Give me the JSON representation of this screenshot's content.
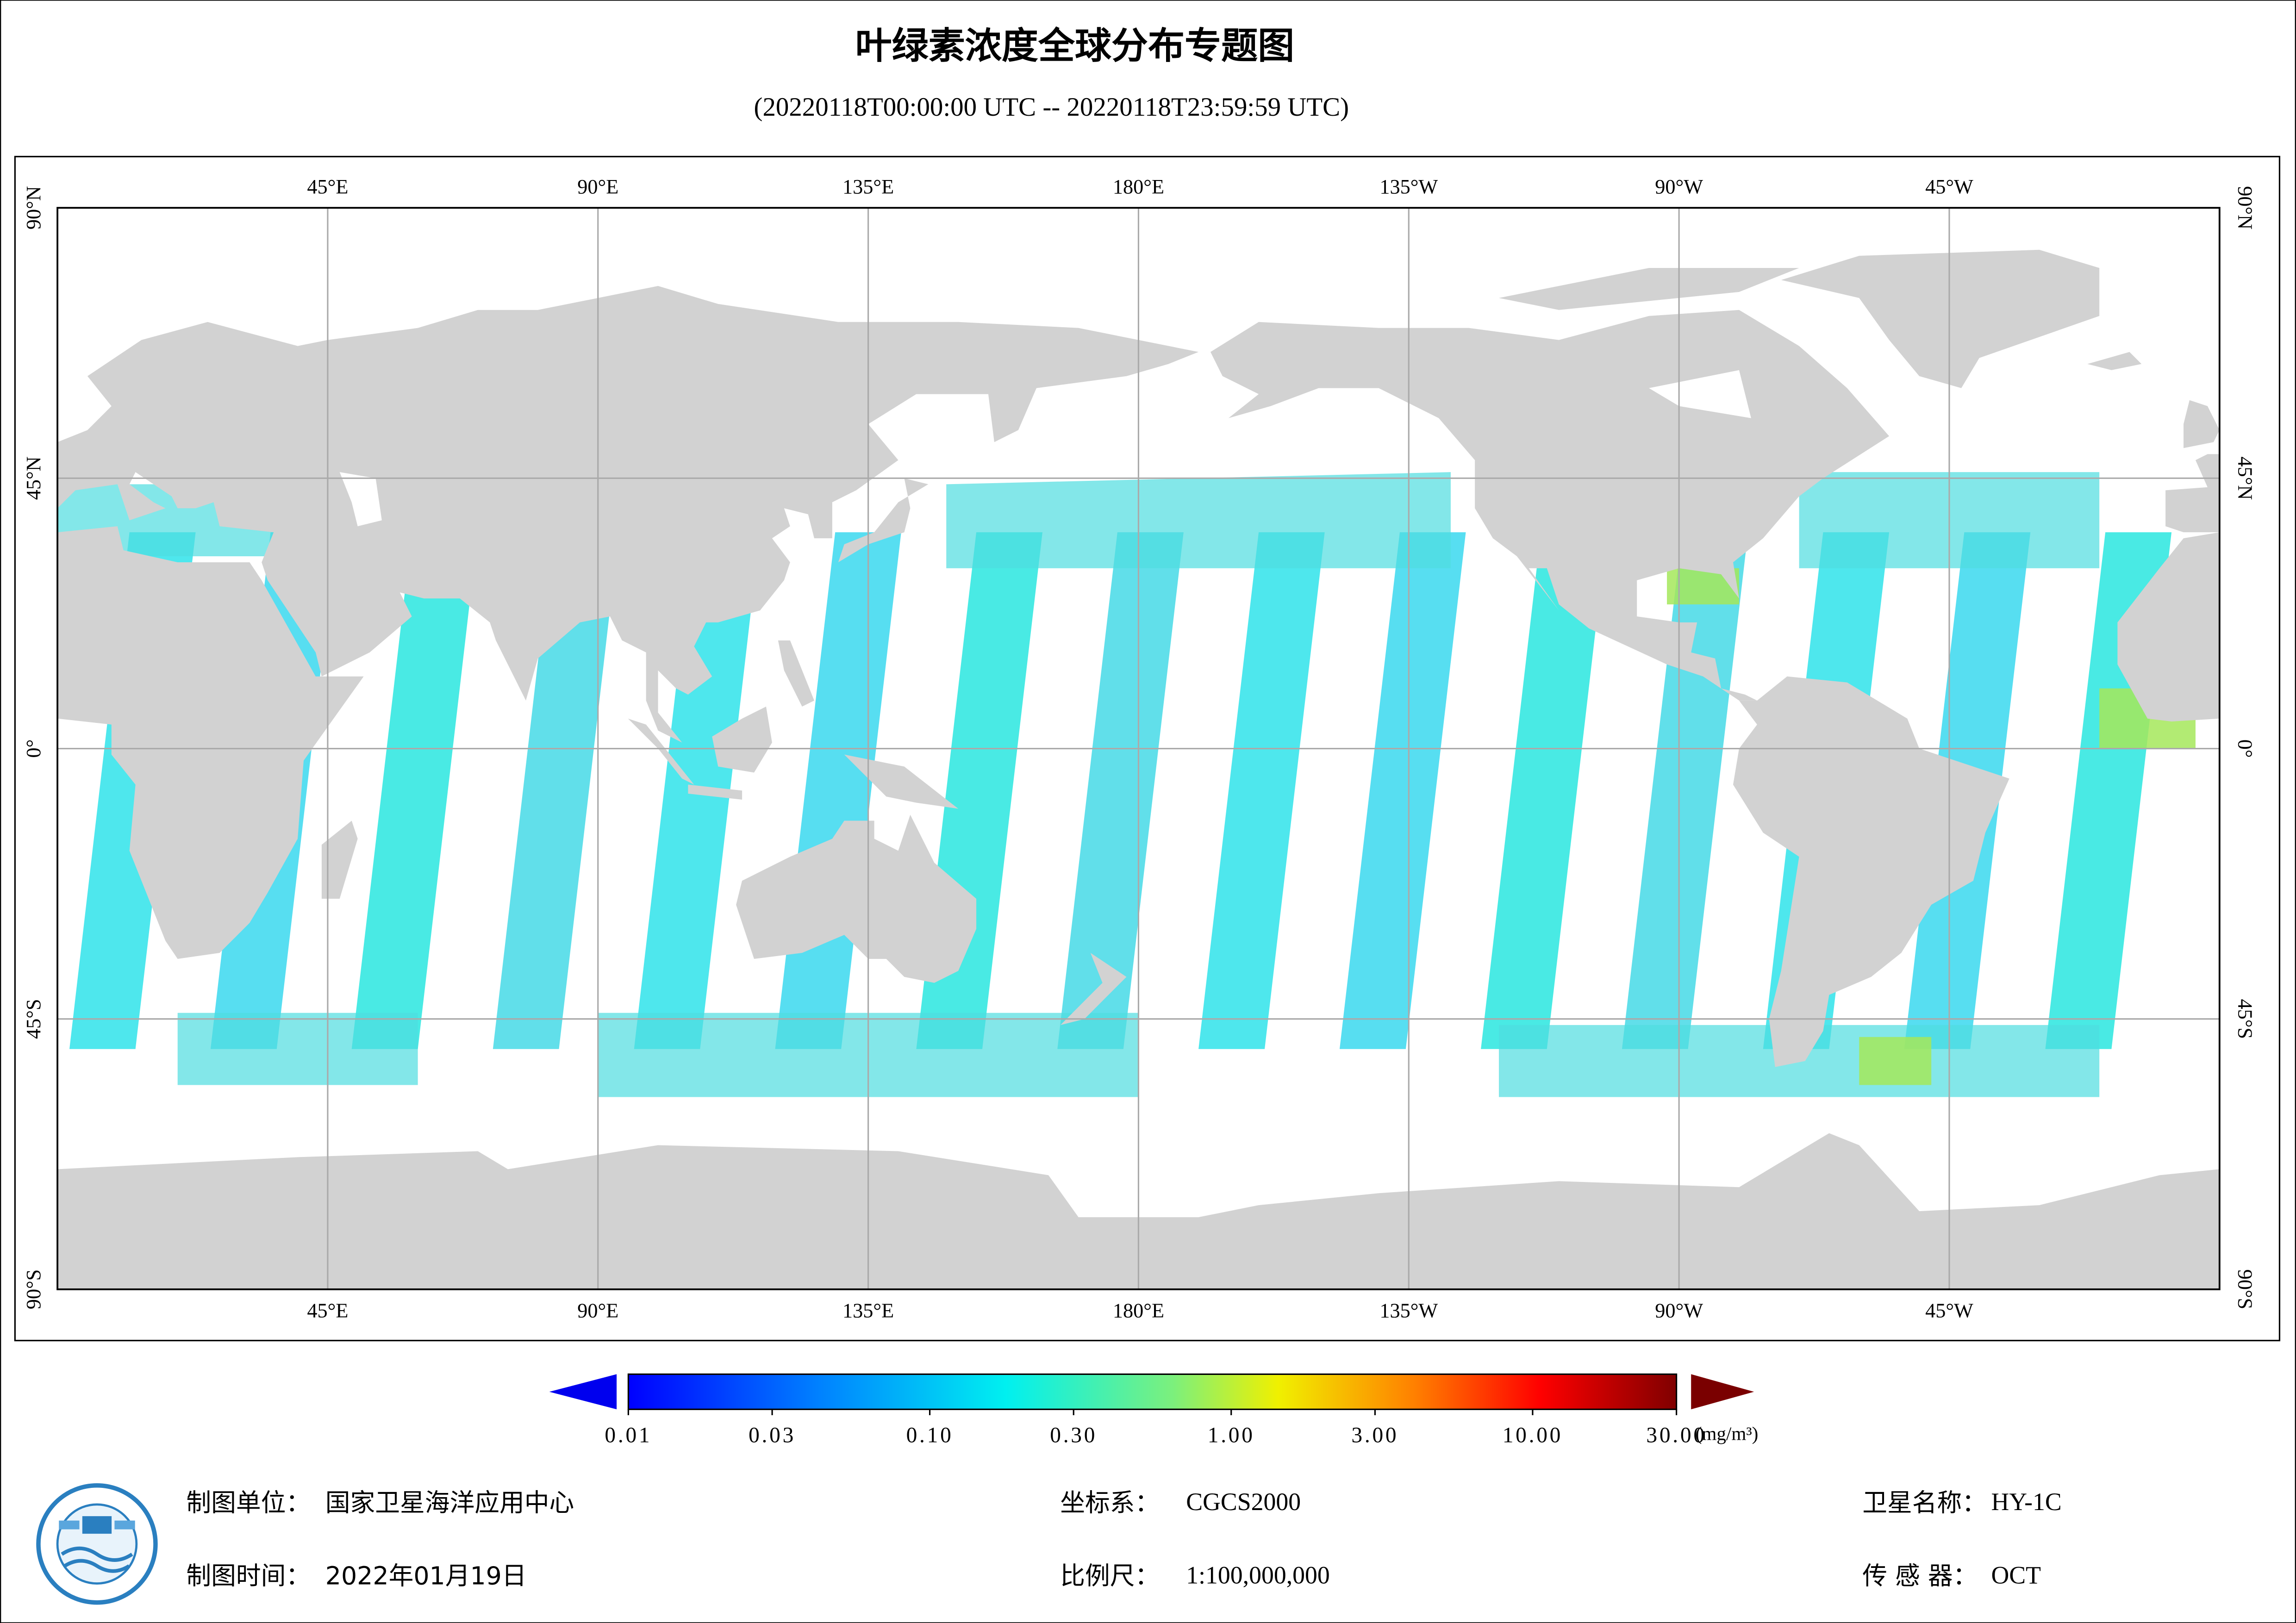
{
  "title": "叶绿素浓度全球分布专题图",
  "subtitle": "(20220118T00:00:00 UTC -- 20220118T23:59:59 UTC)",
  "map": {
    "lon_labels": [
      "45°E",
      "90°E",
      "135°E",
      "180°E",
      "135°W",
      "90°W",
      "45°W"
    ],
    "lat_labels": [
      "90°N",
      "45°N",
      "0°",
      "45°S",
      "90°S"
    ]
  },
  "colorbar": {
    "range": [
      0.01,
      30
    ],
    "log": true,
    "ticks": [
      0.01,
      0.03,
      {
        "value": 0.1,
        "label": "0.10"
      },
      {
        "value": 0.3,
        "label": "0.30"
      },
      {
        "value": 1,
        "label": "1.00"
      },
      {
        "value": 3,
        "label": "3.00"
      },
      {
        "value": 10,
        "label": "10.00"
      },
      {
        "value": 30,
        "label": "30.00"
      }
    ],
    "unit": "(mg/m³)"
  },
  "footer": {
    "left": [
      {
        "label": "制图单位：",
        "value": "国家卫星海洋应用中心"
      },
      {
        "label": "制图时间：",
        "value": "2022年01月19日"
      }
    ],
    "middle": [
      {
        "label": "坐标系：",
        "value": "CGCS2000"
      },
      {
        "label": "比例尺：",
        "value": "1:100,000,000"
      }
    ],
    "right": [
      {
        "label": "卫星名称：",
        "value": "HY-1C"
      },
      {
        "label": "传 感 器：",
        "value": "OCT"
      }
    ]
  }
}
